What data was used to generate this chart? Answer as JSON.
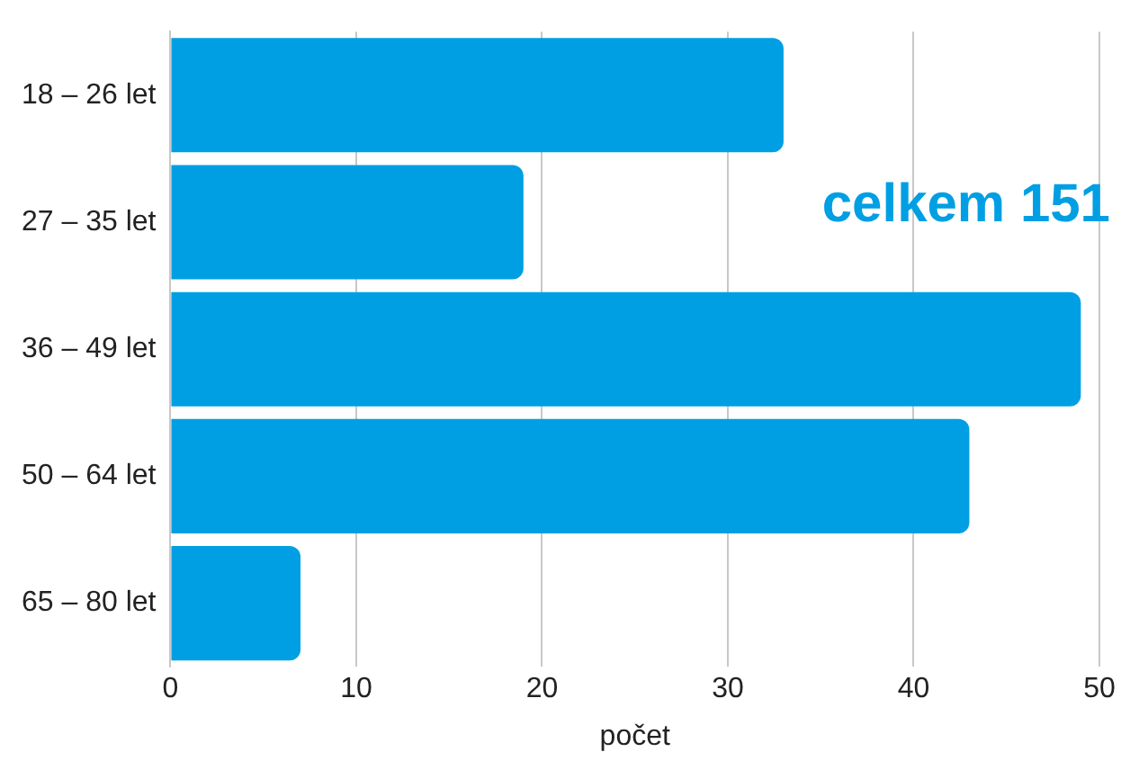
{
  "chart_data": {
    "type": "bar",
    "orientation": "horizontal",
    "categories": [
      "18 – 26 let",
      "27 – 35 let",
      "36 – 49 let",
      "50 – 64 let",
      "65 – 80 let"
    ],
    "values": [
      33,
      19,
      49,
      43,
      7
    ],
    "color": "#009fe3",
    "xlabel": "počet",
    "xlim": [
      0,
      50
    ],
    "xticks": [
      0,
      10,
      20,
      30,
      40,
      50
    ],
    "grid": "x",
    "legend": false,
    "annotations": [
      "celkem 151"
    ]
  }
}
